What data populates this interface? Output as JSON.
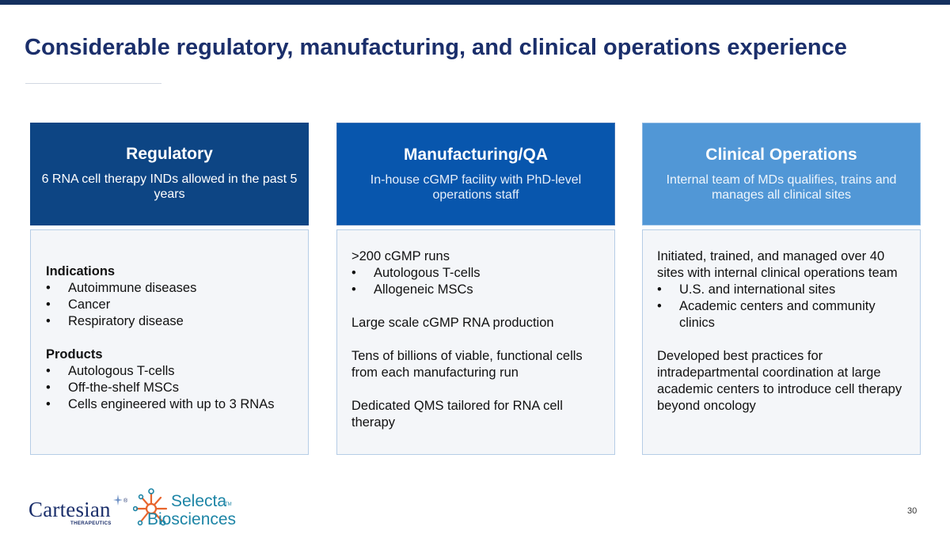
{
  "slide": {
    "title": "Considerable regulatory, manufacturing, and clinical operations experience",
    "page_number": "30"
  },
  "columns": [
    {
      "heading": "Regulatory",
      "subheading": "6 RNA cell therapy INDs allowed in the past 5 years",
      "indications_heading": "Indications",
      "indications": [
        "Autoimmune diseases",
        "Cancer",
        "Respiratory disease"
      ],
      "products_heading": "Products",
      "products": [
        "Autologous T-cells",
        "Off-the-shelf MSCs",
        "Cells engineered with up to 3 RNAs"
      ]
    },
    {
      "heading": "Manufacturing/QA",
      "subheading": "In-house cGMP facility with PhD-level operations staff",
      "runs_text": ">200 cGMP runs",
      "runs_bullets": [
        "Autologous T-cells",
        "Allogeneic MSCs"
      ],
      "para_1": "Large scale cGMP RNA production",
      "para_2": "Tens of billions of viable, functional cells from each manufacturing run",
      "para_3": "Dedicated QMS tailored for RNA cell therapy"
    },
    {
      "heading": "Clinical Operations",
      "subheading": "Internal team of MDs qualifies, trains and manages all clinical sites",
      "intro": "Initiated, trained, and managed over 40 sites with internal clinical operations team",
      "bullets": [
        "U.S. and international sites",
        "Academic centers and community clinics"
      ],
      "closing": "Developed best practices for intradepartmental coordination at large academic centers to introduce cell therapy beyond oncology"
    }
  ],
  "logos": {
    "cartesian_name": "Cartesian",
    "cartesian_reg": "®",
    "cartesian_tagline": "THERAPEUTICS",
    "selecta_word_1": "Selecta",
    "selecta_tm": "TM",
    "selecta_word_2": "Biosciences"
  },
  "colors": {
    "title": "#1b2f6b",
    "regulatory": "#0d4584",
    "manufacturing": "#0856ad",
    "clinical": "#5197d6",
    "body_fill": "#f4f6f9",
    "body_border": "#b6cde6"
  }
}
